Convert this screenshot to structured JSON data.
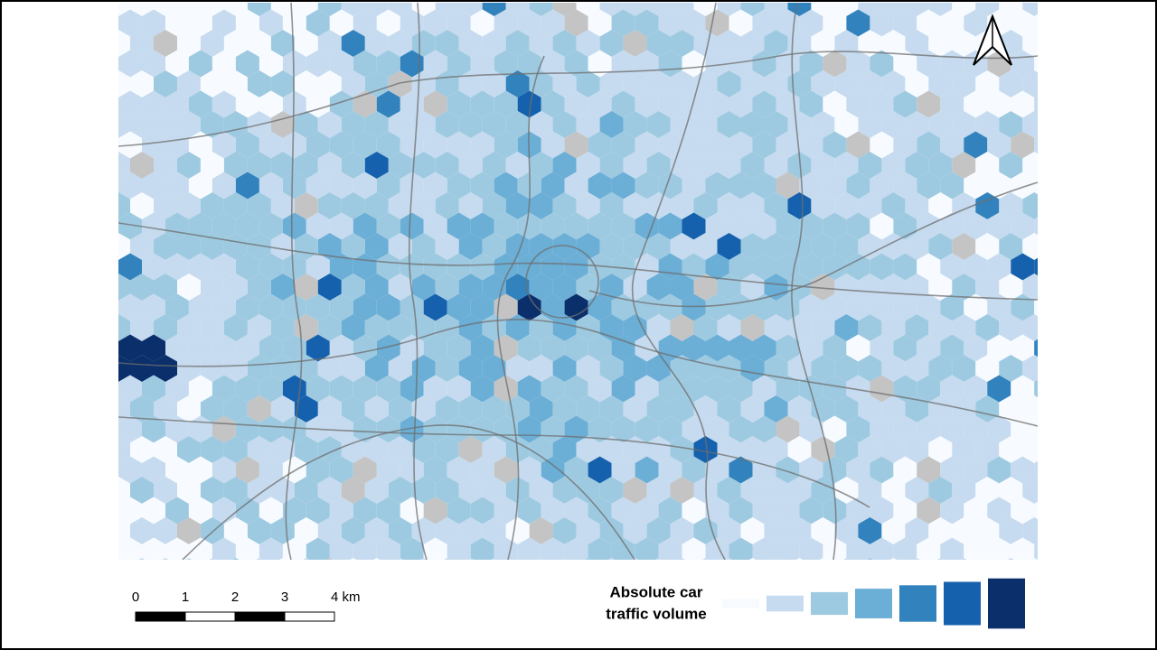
{
  "scale_bar": {
    "labels": [
      "0",
      "1",
      "2",
      "3",
      "4 km"
    ]
  },
  "legend": {
    "title_lines": [
      "Absolute car",
      "traffic volume"
    ],
    "colors": [
      "#f7fbff",
      "#c6dbef",
      "#9ecae1",
      "#6baed6",
      "#3182bd",
      "#1561ad",
      "#0b2f6b"
    ]
  }
}
